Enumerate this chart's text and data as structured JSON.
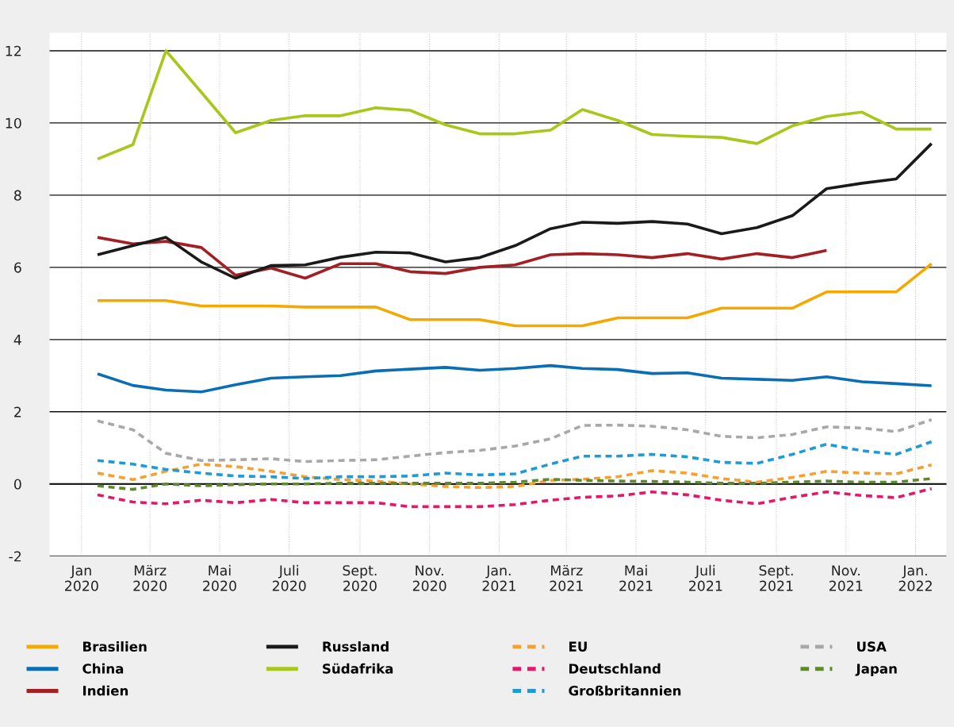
{
  "chart_data": {
    "type": "line",
    "x": [
      "2020-01-15",
      "2020-02-15",
      "2020-03-15",
      "2020-04-15",
      "2020-05-15",
      "2020-06-15",
      "2020-07-15",
      "2020-08-15",
      "2020-09-15",
      "2020-10-15",
      "2020-11-15",
      "2020-12-15",
      "2021-01-15",
      "2021-02-15",
      "2021-03-15",
      "2021-04-15",
      "2021-05-15",
      "2021-06-15",
      "2021-07-15",
      "2021-08-15",
      "2021-09-15",
      "2021-10-15",
      "2021-11-15",
      "2021-12-15",
      "2022-01-15"
    ],
    "xlim": [
      "2019-12-04",
      "2022-01-28"
    ],
    "xticks": [
      {
        "value": "2020-01-01",
        "label": "Jan\n2020"
      },
      {
        "value": "2020-03-01",
        "label": "März\n2020"
      },
      {
        "value": "2020-05-01",
        "label": "Mai\n2020"
      },
      {
        "value": "2020-07-01",
        "label": "Juli\n2020"
      },
      {
        "value": "2020-09-01",
        "label": "Sept.\n2020"
      },
      {
        "value": "2020-11-01",
        "label": "Nov.\n2020"
      },
      {
        "value": "2021-01-01",
        "label": "Jan.\n2021"
      },
      {
        "value": "2021-03-01",
        "label": "März\n2021"
      },
      {
        "value": "2021-05-01",
        "label": "Mai\n2021"
      },
      {
        "value": "2021-07-01",
        "label": "Juli\n2021"
      },
      {
        "value": "2021-09-01",
        "label": "Sept.\n2021"
      },
      {
        "value": "2021-11-01",
        "label": "Nov.\n2021"
      },
      {
        "value": "2022-01-01",
        "label": "Jan.\n2022"
      }
    ],
    "ylim": [
      -2,
      12.5
    ],
    "yticks": [
      -2,
      0,
      2,
      4,
      6,
      8,
      10,
      12
    ],
    "grid": true,
    "legend": "bottom",
    "series": [
      {
        "name": "Brasilien",
        "color": "#f5a800",
        "line_style": "solid",
        "values": [
          5.08,
          5.08,
          5.08,
          4.93,
          4.93,
          4.93,
          4.9,
          4.9,
          4.9,
          4.55,
          4.55,
          4.55,
          4.38,
          4.38,
          4.38,
          4.6,
          4.6,
          4.6,
          4.87,
          4.87,
          4.87,
          5.32,
          5.32,
          5.32,
          6.1
        ]
      },
      {
        "name": "China",
        "color": "#0a6eb4",
        "line_style": "solid",
        "values": [
          3.05,
          2.73,
          2.6,
          2.55,
          2.75,
          2.93,
          2.97,
          3.0,
          3.13,
          3.18,
          3.23,
          3.15,
          3.2,
          3.28,
          3.2,
          3.17,
          3.06,
          3.08,
          2.93,
          2.9,
          2.87,
          2.97,
          2.83,
          2.78,
          2.72
        ]
      },
      {
        "name": "Indien",
        "color": "#a31f24",
        "line_style": "solid",
        "values": [
          6.83,
          6.65,
          6.72,
          6.55,
          5.78,
          5.98,
          5.7,
          6.1,
          6.1,
          5.88,
          5.83,
          6.0,
          6.07,
          6.35,
          6.38,
          6.35,
          6.27,
          6.38,
          6.23,
          6.38,
          6.27,
          6.47,
          null,
          null,
          null
        ]
      },
      {
        "name": "Russland",
        "color": "#1a1a1a",
        "line_style": "solid",
        "values": [
          6.35,
          6.6,
          6.83,
          6.15,
          5.7,
          6.05,
          6.07,
          6.28,
          6.42,
          6.4,
          6.15,
          6.27,
          6.6,
          7.07,
          7.25,
          7.22,
          7.27,
          7.2,
          6.93,
          7.1,
          7.43,
          8.18,
          8.33,
          8.45,
          9.43
        ]
      },
      {
        "name": "Südafrika",
        "color": "#a7c81b",
        "line_style": "solid",
        "values": [
          9.0,
          9.4,
          12.0,
          10.85,
          9.73,
          10.07,
          10.2,
          10.2,
          10.42,
          10.35,
          9.95,
          9.7,
          9.7,
          9.8,
          10.37,
          10.07,
          9.68,
          9.63,
          9.6,
          9.43,
          9.92,
          10.18,
          10.3,
          9.83,
          9.83
        ]
      },
      {
        "name": "EU",
        "color": "#f5a030",
        "line_style": "dashed",
        "values": [
          0.3,
          0.12,
          0.35,
          0.55,
          0.48,
          0.35,
          0.2,
          0.12,
          0.08,
          0.0,
          -0.07,
          -0.1,
          -0.07,
          0.1,
          0.13,
          0.2,
          0.37,
          0.3,
          0.15,
          0.05,
          0.18,
          0.35,
          0.3,
          0.28,
          0.53
        ]
      },
      {
        "name": "Deutschland",
        "color": "#e5176b",
        "line_style": "dashed",
        "values": [
          -0.3,
          -0.5,
          -0.55,
          -0.45,
          -0.52,
          -0.43,
          -0.52,
          -0.52,
          -0.52,
          -0.63,
          -0.63,
          -0.63,
          -0.57,
          -0.45,
          -0.37,
          -0.33,
          -0.22,
          -0.3,
          -0.45,
          -0.55,
          -0.37,
          -0.22,
          -0.32,
          -0.38,
          -0.13
        ]
      },
      {
        "name": "Großbritannien",
        "color": "#1e9ad6",
        "line_style": "dashed",
        "values": [
          0.65,
          0.55,
          0.4,
          0.3,
          0.22,
          0.2,
          0.15,
          0.2,
          0.2,
          0.22,
          0.3,
          0.25,
          0.28,
          0.55,
          0.77,
          0.77,
          0.82,
          0.75,
          0.6,
          0.57,
          0.82,
          1.1,
          0.92,
          0.82,
          1.17
        ]
      },
      {
        "name": "USA",
        "color": "#a8a8a8",
        "line_style": "dashed",
        "values": [
          1.75,
          1.5,
          0.85,
          0.65,
          0.67,
          0.7,
          0.62,
          0.65,
          0.67,
          0.77,
          0.87,
          0.93,
          1.05,
          1.25,
          1.62,
          1.63,
          1.6,
          1.5,
          1.32,
          1.28,
          1.37,
          1.58,
          1.55,
          1.45,
          1.78
        ]
      },
      {
        "name": "Japan",
        "color": "#5e8a2e",
        "line_style": "dashed",
        "values": [
          -0.05,
          -0.15,
          0.0,
          -0.05,
          -0.02,
          0.0,
          0.0,
          0.02,
          0.02,
          0.02,
          0.02,
          0.02,
          0.05,
          0.13,
          0.1,
          0.08,
          0.07,
          0.05,
          0.02,
          0.02,
          0.05,
          0.08,
          0.05,
          0.05,
          0.15
        ]
      }
    ]
  }
}
